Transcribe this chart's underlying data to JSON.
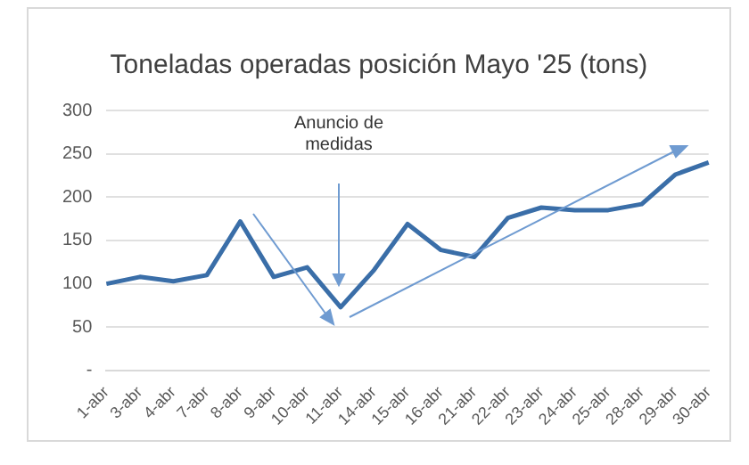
{
  "chart_data": {
    "type": "line",
    "title": "Toneladas operadas posición Mayo '25 (tons)",
    "categories": [
      "1-abr",
      "3-abr",
      "4-abr",
      "7-abr",
      "8-abr",
      "9-abr",
      "10-abr",
      "11-abr",
      "14-abr",
      "15-abr",
      "16-abr",
      "21-abr",
      "22-abr",
      "23-abr",
      "24-abr",
      "25-abr",
      "28-abr",
      "29-abr",
      "30-abr"
    ],
    "series": [
      {
        "color": "#3a6ea8",
        "values": [
          100,
          108,
          103,
          110,
          172,
          108,
          119,
          73,
          116,
          169,
          139,
          131,
          176,
          188,
          185,
          185,
          192,
          226,
          240
        ]
      }
    ],
    "ylim": [
      0,
      300
    ],
    "yticks": [
      {
        "value": 0,
        "label": "-"
      },
      50,
      100,
      150,
      200,
      250,
      300
    ],
    "grid": "y",
    "legend": false,
    "marker": "none",
    "line_style": "solid",
    "annotations": [
      "Anuncio de medidas"
    ]
  }
}
